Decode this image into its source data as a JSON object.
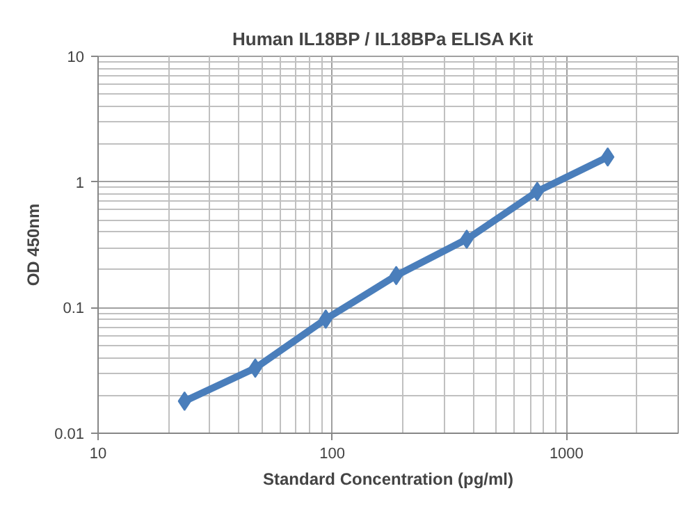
{
  "chart_data": {
    "type": "line",
    "title": "Human  IL18BP / IL18BPa  ELISA Kit",
    "xlabel": "Standard Concentration (pg/ml)",
    "ylabel": "OD 450nm",
    "x": [
      23.4,
      46.9,
      93.8,
      187.5,
      375,
      750,
      1500
    ],
    "series": [
      {
        "color": "#4a7ebb",
        "values": [
          0.018,
          0.033,
          0.081,
          0.18,
          0.35,
          0.84,
          1.58
        ]
      }
    ],
    "log": "xy",
    "xlim": [
      10,
      3000
    ],
    "ylim": [
      0.01,
      10
    ],
    "xticks": [
      10,
      100,
      1000
    ],
    "yticks": [
      0.01,
      0.1,
      1,
      10
    ],
    "grid": true,
    "marker": "diamond",
    "line_style": "solid"
  }
}
